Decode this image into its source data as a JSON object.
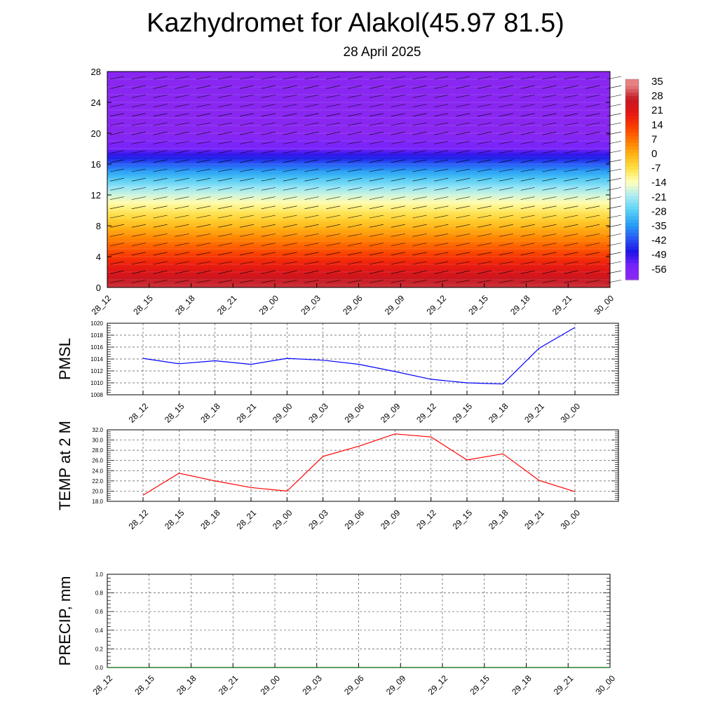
{
  "header": {
    "title": "Kazhydromet for Alakol(45.97 81.5)",
    "subtitle": "28 April 2025"
  },
  "chart_data": [
    {
      "type": "heatmap",
      "name": "temperature-cross-section",
      "x_ticks": [
        "28_12",
        "28_15",
        "28_18",
        "28_21",
        "29_00",
        "29_03",
        "29_06",
        "29_09",
        "29_12",
        "29_15",
        "29_18",
        "29_21",
        "30_00"
      ],
      "y_ticks": [
        0,
        4,
        8,
        12,
        16,
        20,
        24,
        28
      ],
      "ylim": [
        0,
        28
      ],
      "colorbar": {
        "labels": [
          "35",
          "28",
          "21",
          "14",
          "7",
          "0",
          "-7",
          "-14",
          "-21",
          "-28",
          "-35",
          "-42",
          "-49",
          "-56"
        ],
        "range": [
          -63,
          38
        ]
      },
      "levels_km": [
        0,
        1,
        2,
        3,
        4,
        5,
        6,
        7,
        8,
        9,
        10,
        11,
        12,
        13,
        14,
        15,
        16,
        17,
        18,
        19,
        20,
        21,
        22,
        23,
        24,
        25,
        26,
        27,
        28
      ],
      "temperature_profile": [
        30,
        27,
        23,
        19,
        15,
        11,
        7,
        3,
        -1,
        -5,
        -9,
        -13,
        -18,
        -23,
        -29,
        -35,
        -42,
        -49,
        -56,
        -59,
        -62,
        -62,
        -62,
        -62,
        -62,
        -62,
        -62,
        -62,
        -62
      ],
      "grid": false
    },
    {
      "type": "line",
      "name": "PMSL",
      "ylabel": "PMSL",
      "x": [
        "28_12",
        "28_15",
        "28_18",
        "28_21",
        "29_00",
        "29_03",
        "29_06",
        "29_09",
        "29_12",
        "29_15",
        "29_18",
        "29_21",
        "30_00"
      ],
      "series": [
        {
          "values": [
            1014.1,
            1013.2,
            1013.7,
            1013.1,
            1014.1,
            1013.8,
            1013.1,
            1011.9,
            1010.6,
            1010.0,
            1009.8,
            1015.8,
            1019.3
          ],
          "color": "#0000ff"
        }
      ],
      "ylim": [
        1008,
        1020
      ],
      "y_ticks": [
        "1008",
        "1010",
        "1012",
        "1014",
        "1016",
        "1018",
        "1020"
      ],
      "grid": true
    },
    {
      "type": "line",
      "name": "TEMP at 2 M",
      "ylabel": "TEMP at 2 M",
      "x": [
        "28_12",
        "28_15",
        "28_18",
        "28_21",
        "29_00",
        "29_03",
        "29_06",
        "29_09",
        "29_12",
        "29_15",
        "29_18",
        "29_21",
        "30_00"
      ],
      "series": [
        {
          "values": [
            19.2,
            23.5,
            22.0,
            20.7,
            20.0,
            26.8,
            28.8,
            31.2,
            30.6,
            26.1,
            27.3,
            22.1,
            19.9
          ],
          "color": "#ff0000"
        }
      ],
      "ylim": [
        18,
        32
      ],
      "y_ticks": [
        "18.0",
        "20.0",
        "22.0",
        "24.0",
        "26.0",
        "28.0",
        "30.0",
        "32.0"
      ],
      "grid": true
    },
    {
      "type": "line",
      "name": "PRECIP, mm",
      "ylabel": "PRECIP, mm",
      "x": [
        "28_12",
        "28_15",
        "28_18",
        "28_21",
        "29_00",
        "29_03",
        "29_06",
        "29_09",
        "29_12",
        "29_15",
        "29_18",
        "29_21",
        "30_00"
      ],
      "series": [
        {
          "values": [
            0,
            0,
            0,
            0,
            0,
            0,
            0,
            0,
            0,
            0,
            0,
            0,
            0
          ],
          "color": "#006400"
        }
      ],
      "ylim": [
        0,
        1.0
      ],
      "y_ticks": [
        "0.0",
        "0.2",
        "0.4",
        "0.6",
        "0.8",
        "1.0"
      ],
      "grid": true
    }
  ]
}
